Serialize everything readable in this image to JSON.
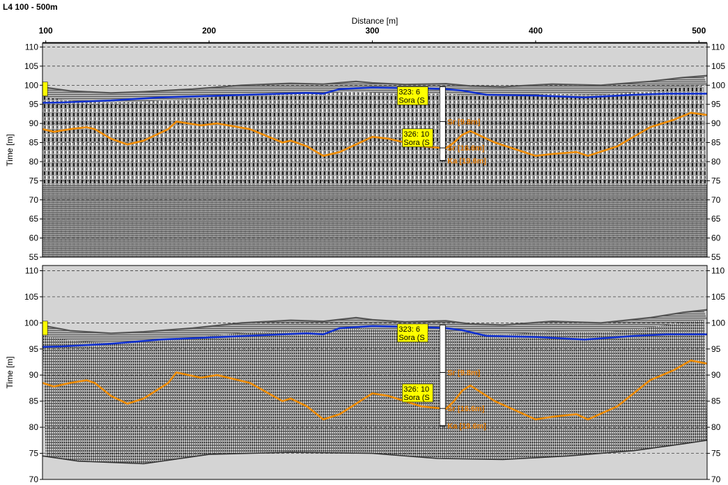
{
  "page": {
    "title": "L4 100 - 500m"
  },
  "chart_data": [
    {
      "type": "line",
      "title": "L4 100 - 500m",
      "xlabel": "Distance [m]",
      "ylabel": "Time [m]",
      "xlim": [
        98,
        505
      ],
      "ylim": [
        55,
        111
      ],
      "x_ticks": [
        100,
        200,
        300,
        400,
        500
      ],
      "y_ticks": [
        55,
        60,
        65,
        70,
        75,
        80,
        85,
        90,
        95,
        100,
        105,
        110
      ],
      "grid": true,
      "background": "radargram",
      "series": [
        {
          "name": "",
          "color": "#555555",
          "style": "surface",
          "x": [
            98,
            115,
            140,
            160,
            190,
            220,
            250,
            270,
            290,
            300,
            320,
            345,
            360,
            380,
            410,
            440,
            470,
            490,
            505
          ],
          "y": [
            99.5,
            98.5,
            98.0,
            98.3,
            99.0,
            100.0,
            100.5,
            100.3,
            101.0,
            100.6,
            100.2,
            100.4,
            99.8,
            99.6,
            100.3,
            100.0,
            101.0,
            102.0,
            102.5
          ]
        },
        {
          "name": "",
          "color": "#1030d0",
          "x": [
            98,
            110,
            140,
            170,
            200,
            230,
            260,
            270,
            280,
            300,
            330,
            345,
            355,
            370,
            400,
            430,
            460,
            480,
            505
          ],
          "y": [
            95.4,
            95.5,
            96.0,
            96.8,
            97.2,
            97.6,
            98.0,
            97.8,
            99.0,
            99.4,
            99.2,
            99.0,
            98.6,
            97.5,
            97.3,
            96.8,
            97.5,
            97.8,
            97.8
          ]
        },
        {
          "name": "",
          "color": "#f08c00",
          "x": [
            98,
            105,
            115,
            125,
            130,
            140,
            150,
            160,
            175,
            180,
            195,
            205,
            225,
            245,
            250,
            260,
            270,
            280,
            295,
            300,
            310,
            320,
            330,
            345,
            350,
            355,
            360,
            375,
            400,
            410,
            425,
            432,
            450,
            470,
            485,
            495,
            505
          ],
          "y": [
            88.5,
            87.8,
            88.5,
            89.0,
            88.5,
            86.0,
            84.5,
            85.5,
            88.5,
            90.5,
            89.5,
            90.0,
            88.5,
            85.0,
            85.5,
            84.0,
            81.5,
            82.5,
            85.5,
            86.5,
            86.0,
            85.0,
            84.0,
            83.5,
            85.0,
            87.0,
            88.0,
            85.0,
            81.5,
            82.0,
            82.5,
            81.5,
            84.0,
            89.0,
            91.0,
            92.8,
            92.2
          ]
        }
      ],
      "annotations": [
        {
          "x": 323,
          "y": 98.5,
          "lines": [
            "323: 6",
            "Sora (S"
          ]
        },
        {
          "x": 326,
          "y": 87.5,
          "lines": [
            "326: 10",
            "Sora (S"
          ]
        }
      ],
      "borehole": {
        "x": 343,
        "top": 99.6,
        "bottom": 80.2,
        "layers": [
          {
            "y": 90.5,
            "label": "Sr [9.8m]"
          },
          {
            "y": 83.6,
            "label": "Sr [16.6m]"
          },
          {
            "y": 80.3,
            "label": "Ka [19.6m]"
          }
        ]
      },
      "edge_marker": {
        "x": 99,
        "y": 99.0
      }
    },
    {
      "type": "line",
      "title": "",
      "xlabel": "",
      "ylabel": "Time [m]",
      "xlim": [
        98,
        505
      ],
      "ylim": [
        70,
        111
      ],
      "y_ticks": [
        70,
        75,
        80,
        85,
        90,
        95,
        100,
        105,
        110
      ],
      "grid": true,
      "background": "radargram",
      "series": [
        {
          "name": "",
          "color": "#555555",
          "style": "surface",
          "x": [
            98,
            115,
            140,
            160,
            190,
            220,
            250,
            270,
            290,
            300,
            320,
            345,
            360,
            380,
            410,
            440,
            470,
            490,
            505
          ],
          "y": [
            99.5,
            98.5,
            98.0,
            98.3,
            99.0,
            100.0,
            100.5,
            100.3,
            101.0,
            100.6,
            100.2,
            100.4,
            99.8,
            99.6,
            100.3,
            100.0,
            101.0,
            102.0,
            102.5
          ]
        },
        {
          "name": "",
          "color": "#1030d0",
          "x": [
            98,
            110,
            140,
            170,
            200,
            230,
            260,
            270,
            280,
            300,
            330,
            345,
            355,
            370,
            400,
            430,
            460,
            480,
            505
          ],
          "y": [
            95.4,
            95.5,
            96.0,
            96.8,
            97.2,
            97.6,
            98.0,
            97.8,
            99.0,
            99.4,
            99.2,
            99.0,
            98.6,
            97.5,
            97.3,
            96.8,
            97.5,
            97.8,
            97.8
          ]
        },
        {
          "name": "",
          "color": "#f08c00",
          "x": [
            98,
            105,
            115,
            125,
            130,
            140,
            150,
            160,
            175,
            180,
            195,
            205,
            225,
            245,
            250,
            260,
            270,
            280,
            295,
            300,
            310,
            320,
            330,
            345,
            350,
            355,
            360,
            375,
            400,
            410,
            425,
            432,
            450,
            470,
            485,
            495,
            505
          ],
          "y": [
            88.5,
            87.8,
            88.5,
            89.0,
            88.5,
            86.0,
            84.5,
            85.5,
            88.5,
            90.5,
            89.5,
            90.0,
            88.5,
            85.0,
            85.5,
            84.0,
            81.5,
            82.5,
            85.5,
            86.5,
            86.0,
            85.0,
            84.0,
            83.5,
            85.0,
            87.0,
            88.0,
            85.0,
            81.5,
            82.0,
            82.5,
            81.5,
            84.0,
            89.0,
            91.0,
            92.8,
            92.2
          ]
        },
        {
          "name": "",
          "color": "#333333",
          "style": "deep-boundary",
          "x": [
            98,
            120,
            160,
            200,
            250,
            300,
            340,
            380,
            420,
            460,
            490,
            505
          ],
          "y": [
            74.5,
            73.5,
            73.0,
            74.8,
            75.2,
            75.0,
            74.0,
            73.8,
            74.5,
            75.5,
            76.8,
            77.5
          ]
        }
      ],
      "annotations": [
        {
          "x": 323,
          "y": 99.0,
          "lines": [
            "323: 6",
            "Sora (S"
          ]
        },
        {
          "x": 326,
          "y": 87.5,
          "lines": [
            "326: 10",
            "Sora (S"
          ]
        }
      ],
      "borehole": {
        "x": 343,
        "top": 99.6,
        "bottom": 80.2,
        "layers": [
          {
            "y": 90.5,
            "label": "Sr [9.8m]"
          },
          {
            "y": 83.6,
            "label": "Sr [16.6m]"
          },
          {
            "y": 80.3,
            "label": "Ka [19.6m]"
          }
        ]
      },
      "edge_marker": {
        "x": 99,
        "y": 99.0
      }
    }
  ]
}
